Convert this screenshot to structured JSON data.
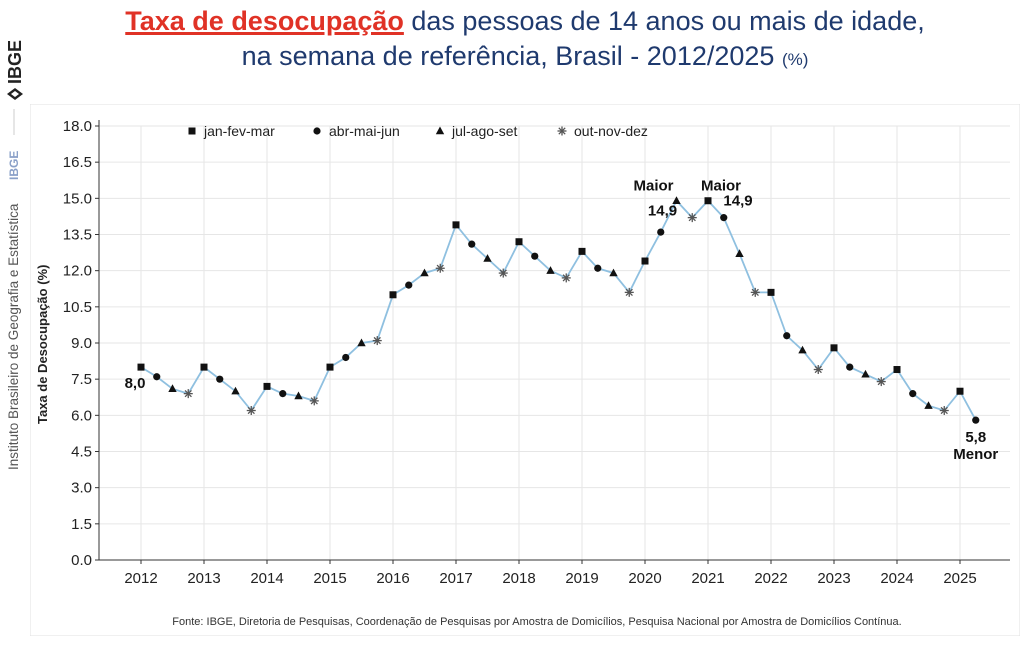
{
  "title": {
    "highlight": "Taxa de desocupação",
    "line1_rest": " das pessoas de 14 anos ou mais de idade,",
    "line2": "na semana de referência, Brasil - 2012/2025",
    "unit": "(%)"
  },
  "sidebar": {
    "logo_text": "IBGE",
    "institute": "Instituto Brasileiro de Geografia e Estatística",
    "acronym": "IBGE"
  },
  "source": "Fonte: IBGE, Diretoria de Pesquisas, Coordenação de Pesquisas por Amostra de Domicílios, Pesquisa Nacional por Amostra de Domicílios Contínua.",
  "colors": {
    "title_red": "#e03226",
    "title_blue": "#1f3a6e",
    "line": "#8fc0e0",
    "marker": "#111111",
    "grid": "#e4e4e4"
  },
  "chart_data": {
    "type": "line",
    "ylabel": "Taxa de Desocupação (%)",
    "xlabel": "",
    "ylim": [
      0,
      18
    ],
    "yticks": [
      "0.0",
      "1.5",
      "3.0",
      "4.5",
      "6.0",
      "7.5",
      "9.0",
      "10.5",
      "12.0",
      "13.5",
      "15.0",
      "16.5",
      "18.0"
    ],
    "xticks": [
      "2012",
      "2013",
      "2014",
      "2015",
      "2016",
      "2017",
      "2018",
      "2019",
      "2020",
      "2021",
      "2022",
      "2023",
      "2024",
      "2025"
    ],
    "grid": true,
    "legend_position": "top-left",
    "series": [
      {
        "name": "jan-fev-mar",
        "marker": "square"
      },
      {
        "name": "abr-mai-jun",
        "marker": "circle"
      },
      {
        "name": "jul-ago-set",
        "marker": "triangle"
      },
      {
        "name": "out-nov-dez",
        "marker": "asterisk"
      }
    ],
    "values": [
      8.0,
      7.6,
      7.1,
      6.9,
      8.0,
      7.5,
      7.0,
      6.2,
      7.2,
      6.9,
      6.8,
      6.6,
      8.0,
      8.4,
      9.0,
      9.1,
      11.0,
      11.4,
      11.9,
      12.1,
      13.9,
      13.1,
      12.5,
      11.9,
      13.2,
      12.6,
      12.0,
      11.7,
      12.8,
      12.1,
      11.9,
      11.1,
      12.4,
      13.6,
      14.9,
      14.2,
      14.9,
      14.2,
      12.7,
      11.1,
      11.1,
      9.3,
      8.7,
      7.9,
      8.8,
      8.0,
      7.7,
      7.4,
      7.9,
      6.9,
      6.4,
      6.2,
      7.0,
      5.8
    ],
    "annotations": [
      {
        "label": "Maior",
        "value": "14,9"
      },
      {
        "label": "Maior",
        "value": "14,9"
      },
      {
        "label": "",
        "value": "8,0"
      },
      {
        "label": "Menor",
        "value": "5,8"
      }
    ]
  }
}
